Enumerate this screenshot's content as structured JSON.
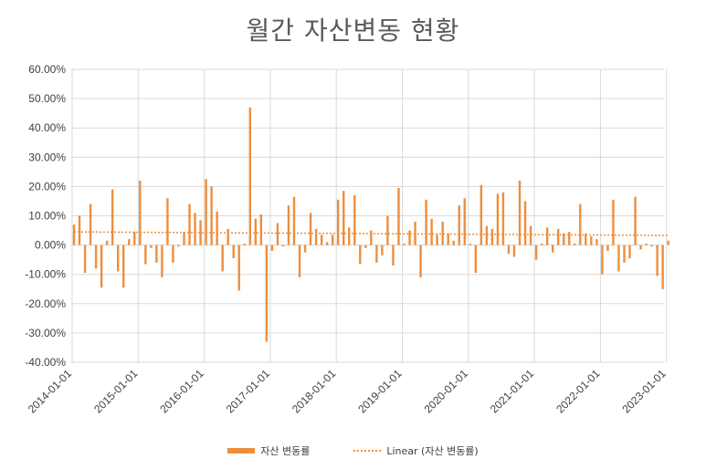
{
  "chart_data": {
    "type": "bar",
    "title": "월간 자산변동 현황",
    "ylim": [
      -0.4,
      0.6
    ],
    "y_ticks": [
      "60.00%",
      "50.00%",
      "40.00%",
      "30.00%",
      "20.00%",
      "10.00%",
      "0.00%",
      "-10.00%",
      "-20.00%",
      "-30.00%",
      "-40.00%"
    ],
    "x_ticks": [
      "2014-01-01",
      "2015-01-01",
      "2016-01-01",
      "2017-01-01",
      "2018-01-01",
      "2019-01-01",
      "2020-01-01",
      "2021-01-01",
      "2022-01-01",
      "2023-01-01"
    ],
    "grid": true,
    "legend_position": "bottom",
    "color": "#ED8E3E",
    "series": [
      {
        "name": "자산 변동률",
        "start": "2014-01",
        "values": [
          0.07,
          0.1,
          -0.095,
          0.14,
          -0.08,
          -0.145,
          0.015,
          0.19,
          -0.09,
          -0.145,
          0.02,
          0.045,
          0.22,
          -0.065,
          -0.01,
          -0.06,
          -0.11,
          0.16,
          -0.06,
          -0.005,
          0.045,
          0.14,
          0.11,
          0.085,
          0.225,
          0.2,
          0.115,
          -0.09,
          0.055,
          -0.045,
          -0.155,
          0.005,
          0.47,
          0.09,
          0.105,
          -0.33,
          -0.02,
          0.075,
          -0.005,
          0.135,
          0.165,
          -0.11,
          -0.025,
          0.11,
          0.055,
          0.035,
          0.01,
          0.035,
          0.155,
          0.185,
          0.06,
          0.17,
          -0.065,
          -0.01,
          0.05,
          -0.06,
          -0.035,
          0.1,
          -0.07,
          0.195,
          0.005,
          0.05,
          0.08,
          -0.11,
          0.155,
          0.09,
          0.035,
          0.08,
          0.04,
          0.015,
          0.135,
          0.16,
          0.005,
          -0.095,
          0.205,
          0.065,
          0.055,
          0.175,
          0.18,
          -0.03,
          -0.04,
          0.22,
          0.15,
          0.065,
          -0.05,
          0.005,
          0.06,
          -0.025,
          0.055,
          0.04,
          0.045,
          0.005,
          0.14,
          0.04,
          0.03,
          0.02,
          -0.1,
          -0.02,
          0.155,
          -0.09,
          -0.06,
          -0.045,
          0.165,
          -0.015,
          0.005,
          -0.005,
          -0.105,
          -0.15,
          0.015
        ]
      },
      {
        "name": "Linear (자산 변동률)",
        "type": "trendline",
        "start_value": 0.045,
        "end_value": 0.033
      }
    ]
  }
}
